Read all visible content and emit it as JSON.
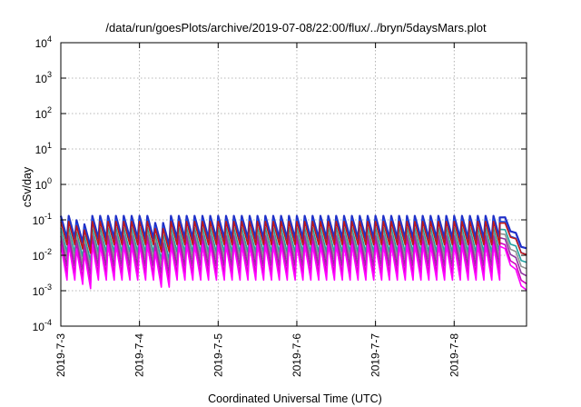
{
  "chart_data": {
    "type": "line",
    "title": "/data/run/goesPlots/archive/2019-07-08/22:00/flux/../bryn/5daysMars.plot",
    "xlabel": "Coordinated Universal Time (UTC)",
    "ylabel": "cSv/day",
    "y_scale": "log",
    "ylim": [
      0.0001,
      10000
    ],
    "xlim_days": [
      0,
      5.92
    ],
    "y_ticks": [
      {
        "base": "10",
        "exp": "-4"
      },
      {
        "base": "10",
        "exp": "-3"
      },
      {
        "base": "10",
        "exp": "-2"
      },
      {
        "base": "10",
        "exp": "-1"
      },
      {
        "base": "10",
        "exp": "0"
      },
      {
        "base": "10",
        "exp": "1"
      },
      {
        "base": "10",
        "exp": "2"
      },
      {
        "base": "10",
        "exp": "3"
      },
      {
        "base": "10",
        "exp": "4"
      }
    ],
    "x_ticks": [
      {
        "label": "2019-7-3",
        "day": 0
      },
      {
        "label": "2019-7-4",
        "day": 1
      },
      {
        "label": "2019-7-5",
        "day": 2
      },
      {
        "label": "2019-7-6",
        "day": 3
      },
      {
        "label": "2019-7-7",
        "day": 4
      },
      {
        "label": "2019-7-8",
        "day": 5
      }
    ],
    "grid": true,
    "pattern": {
      "period_days": 0.1,
      "drop_start_day": 5.58,
      "dips": [
        {
          "day_start": 0.2,
          "day_end": 0.45,
          "factor": 0.5
        },
        {
          "day_start": 1.15,
          "day_end": 1.45,
          "factor": 0.5
        },
        {
          "day_start": 5.65,
          "day_end": 5.92,
          "factor": 0.4
        }
      ]
    },
    "series": [
      {
        "color": "#2030c8",
        "peak": 0.13,
        "trough": 0.03
      },
      {
        "color": "#1a50e0",
        "peak": 0.1,
        "trough": 0.02
      },
      {
        "color": "#20a0a0",
        "peak": 0.06,
        "trough": 0.012
      },
      {
        "color": "#909090",
        "peak": 0.045,
        "trough": 0.008
      },
      {
        "color": "#9030a0",
        "peak": 0.035,
        "trough": 0.005
      },
      {
        "color": "#d000c0",
        "peak": 0.025,
        "trough": 0.003
      },
      {
        "color": "#ff00ff",
        "peak": 0.02,
        "trough": 0.002
      },
      {
        "color": "#c01818",
        "peak": 0.09,
        "trough": 0.02
      }
    ]
  }
}
